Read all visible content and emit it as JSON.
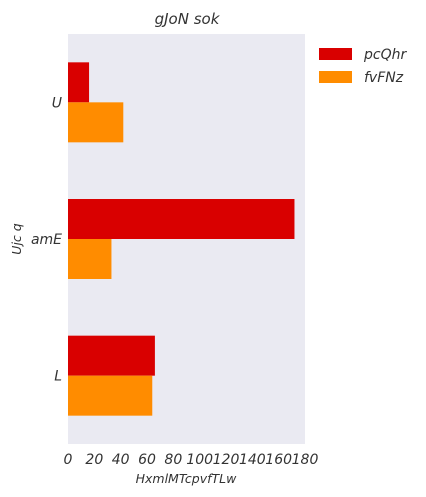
{
  "chart_data": {
    "type": "bar",
    "orientation": "horizontal",
    "title": "gJoN sok",
    "xlabel": "HxmlMTcpvfTLw",
    "ylabel": "Ujc q",
    "categories": [
      "U",
      "amE",
      "L"
    ],
    "series": [
      {
        "name": "pcQhr",
        "color": "#d90000",
        "values": [
          16,
          172,
          66
        ]
      },
      {
        "name": "fvFNz",
        "color": "#ff8c00",
        "values": [
          42,
          33,
          64
        ]
      }
    ],
    "xlim": [
      0,
      180
    ],
    "xticks": [
      0,
      20,
      40,
      60,
      80,
      100,
      120,
      140,
      160,
      180
    ],
    "grid": false,
    "background": "#eaeaf2",
    "legend_position": "outside-top-right"
  }
}
